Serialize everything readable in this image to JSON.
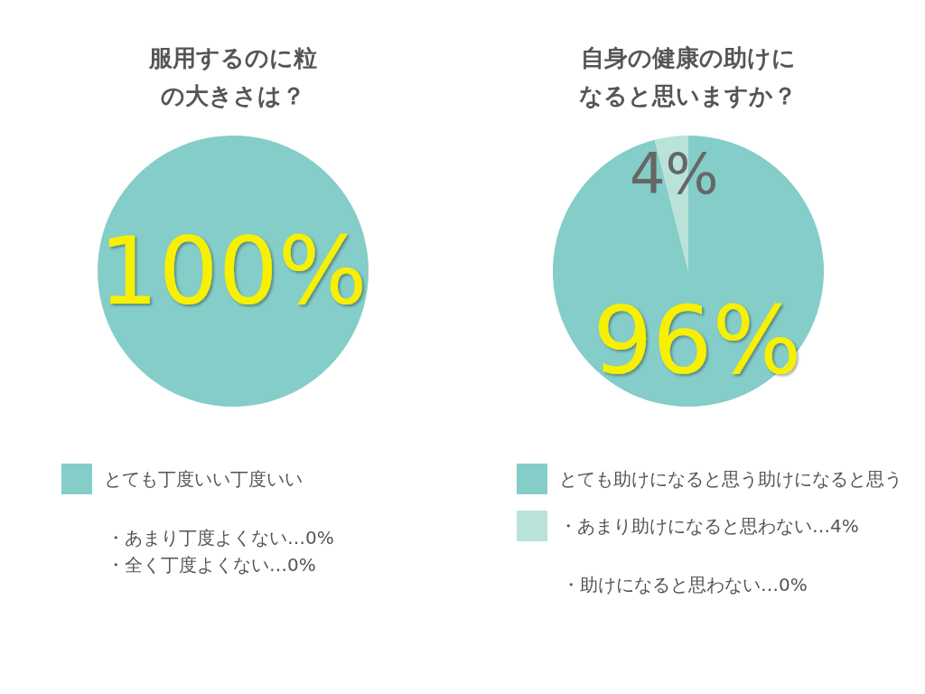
{
  "chart_data": [
    {
      "type": "pie",
      "title": "服用するのに粒の大きさは？",
      "categories": [
        "とても丁度いい丁度いい"
      ],
      "values": [
        100
      ],
      "colors": [
        "#84cdc8"
      ],
      "value_labels": [
        "100%"
      ],
      "legend": "bottom",
      "annotations": [
        "・あまり丁度よくない…0%",
        "・全く丁度よくない…0%"
      ]
    },
    {
      "type": "pie",
      "title": "自身の健康の助けになると思いますか？",
      "categories": [
        "とても助けになると思う助けになると思う",
        "・あまり助けになると思わない…4%"
      ],
      "values": [
        96,
        4
      ],
      "colors": [
        "#84cdc8",
        "#b9e2d9"
      ],
      "value_labels": [
        "96%",
        "4%"
      ],
      "legend": "bottom",
      "annotations": [
        "・助けになると思わない…0%"
      ]
    }
  ]
}
